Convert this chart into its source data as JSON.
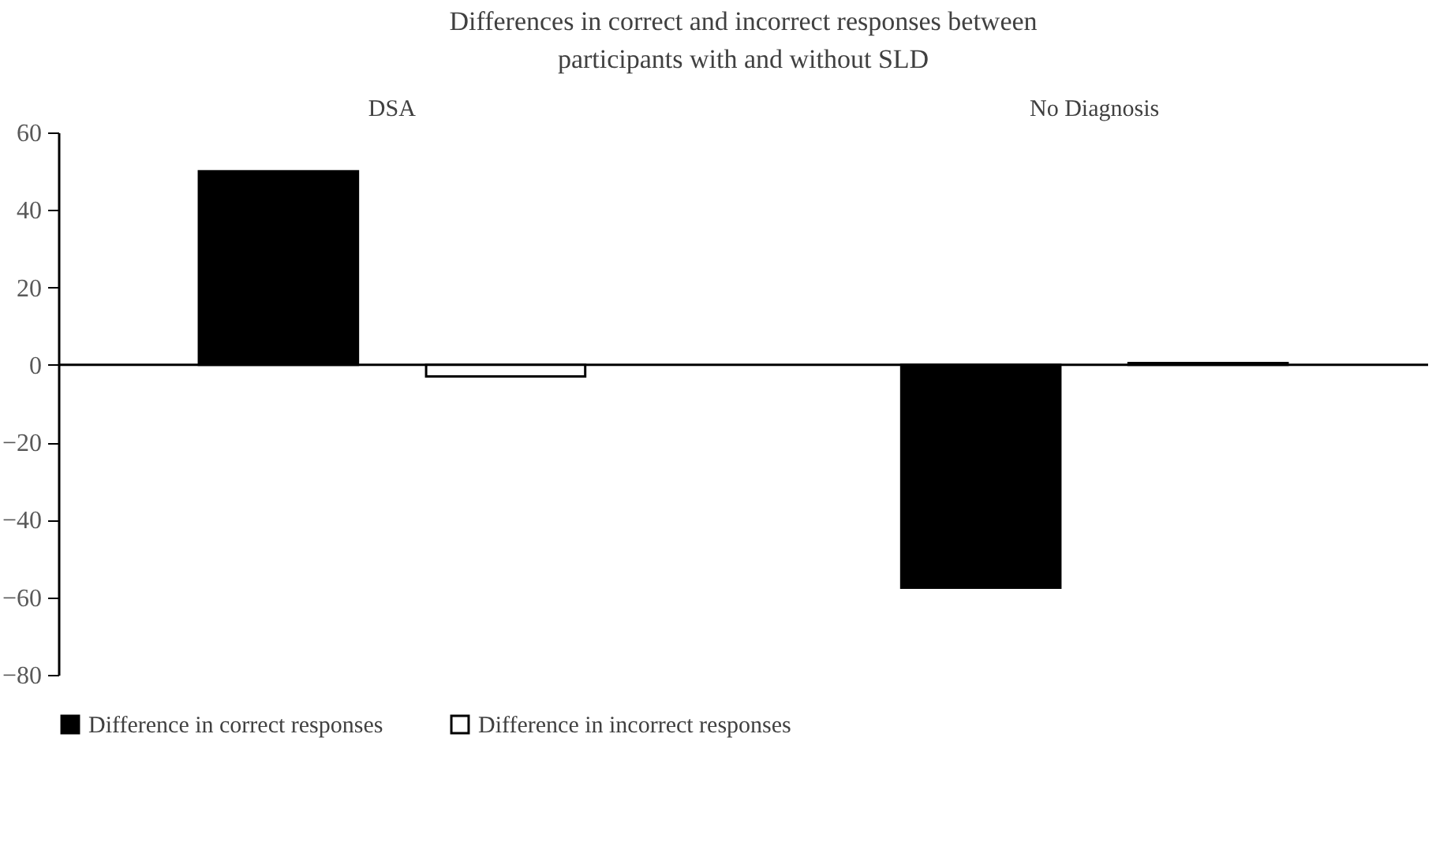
{
  "chart_data": {
    "type": "bar",
    "title": "Differences in correct and incorrect responses between participants with and without SLD",
    "categories": [
      "DSA",
      "No Diagnosis"
    ],
    "series": [
      {
        "name": "Difference in correct responses",
        "color": "#000000",
        "values": [
          50,
          -57.5
        ]
      },
      {
        "name": "Difference in incorrect responses",
        "color": "#ffffff",
        "values": [
          -3,
          0.5
        ]
      }
    ],
    "ylim": [
      -80,
      60
    ],
    "yticks": [
      -80,
      -60,
      -40,
      -20,
      0,
      20,
      40,
      60
    ],
    "legend": "bottom"
  }
}
